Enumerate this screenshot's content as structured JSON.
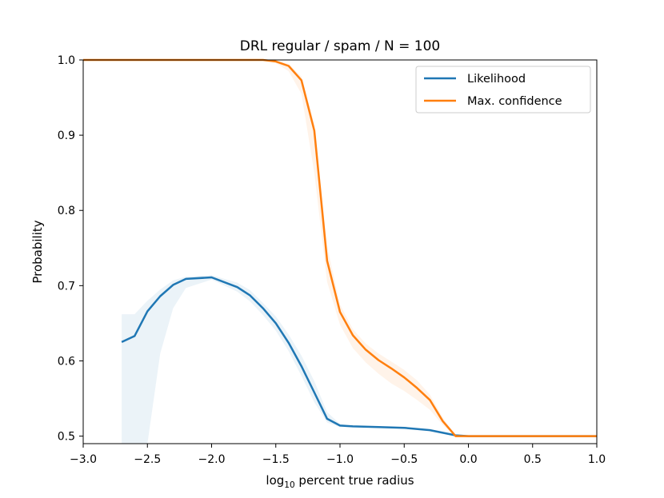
{
  "chart_data": {
    "type": "line",
    "title": "DRL regular / spam / N = 100",
    "xlabel_main": "log",
    "xlabel_sub": "10",
    "xlabel_rest": " percent true radius",
    "ylabel": "Probability",
    "xlim": [
      -3.0,
      1.0
    ],
    "ylim": [
      0.49,
      1.0
    ],
    "x_ticks": [
      -3.0,
      -2.5,
      -2.0,
      -1.5,
      -1.0,
      -0.5,
      0.0,
      0.5,
      1.0
    ],
    "x_tick_labels": [
      "−3.0",
      "−2.5",
      "−2.0",
      "−1.5",
      "−1.0",
      "−0.5",
      "0.0",
      "0.5",
      "1.0"
    ],
    "y_ticks": [
      0.5,
      0.6,
      0.7,
      0.8,
      0.9,
      1.0
    ],
    "y_tick_labels": [
      "0.5",
      "0.6",
      "0.7",
      "0.8",
      "0.9",
      "1.0"
    ],
    "legend_position": "top-right",
    "grid": false,
    "series": [
      {
        "name": "Likelihood",
        "color": "#1f77b4",
        "x": [
          -2.7,
          -2.6,
          -2.5,
          -2.4,
          -2.3,
          -2.2,
          -2.0,
          -1.8,
          -1.7,
          -1.6,
          -1.5,
          -1.4,
          -1.3,
          -1.2,
          -1.1,
          -1.0,
          -0.9,
          -0.7,
          -0.5,
          -0.3,
          -0.1,
          0.0,
          1.0
        ],
        "y": [
          0.625,
          0.633,
          0.666,
          0.686,
          0.701,
          0.709,
          0.711,
          0.698,
          0.687,
          0.67,
          0.65,
          0.624,
          0.593,
          0.558,
          0.523,
          0.514,
          0.513,
          0.512,
          0.511,
          0.508,
          0.501,
          0.5,
          0.5
        ],
        "band_upper": [
          0.662,
          0.662,
          0.68,
          0.695,
          0.707,
          0.712,
          0.714,
          0.704,
          0.694,
          0.677,
          0.659,
          0.635,
          0.607,
          0.573,
          0.532,
          0.516,
          0.514,
          0.513,
          0.512,
          0.509,
          0.502,
          0.5,
          0.5
        ],
        "band_lower": [
          0.49,
          0.49,
          0.49,
          0.61,
          0.67,
          0.697,
          0.708,
          0.692,
          0.679,
          0.661,
          0.64,
          0.613,
          0.58,
          0.545,
          0.518,
          0.512,
          0.512,
          0.511,
          0.51,
          0.507,
          0.5,
          0.5,
          0.5
        ]
      },
      {
        "name": "Max. confidence",
        "color": "#ff7f0e",
        "x": [
          -3.0,
          -1.6,
          -1.5,
          -1.4,
          -1.3,
          -1.2,
          -1.1,
          -1.0,
          -0.9,
          -0.8,
          -0.7,
          -0.6,
          -0.5,
          -0.4,
          -0.3,
          -0.2,
          -0.1,
          0.0,
          1.0
        ],
        "y": [
          1.0,
          1.0,
          0.998,
          0.992,
          0.973,
          0.906,
          0.733,
          0.665,
          0.634,
          0.615,
          0.601,
          0.59,
          0.578,
          0.564,
          0.548,
          0.52,
          0.5,
          0.5,
          0.5
        ],
        "band_upper": [
          1.0,
          1.0,
          0.999,
          0.995,
          0.978,
          0.915,
          0.752,
          0.675,
          0.642,
          0.623,
          0.61,
          0.599,
          0.588,
          0.574,
          0.555,
          0.525,
          0.501,
          0.5,
          0.5
        ],
        "band_lower": [
          1.0,
          1.0,
          0.996,
          0.985,
          0.955,
          0.85,
          0.705,
          0.648,
          0.617,
          0.598,
          0.583,
          0.57,
          0.56,
          0.548,
          0.535,
          0.515,
          0.499,
          0.5,
          0.5
        ]
      }
    ]
  }
}
